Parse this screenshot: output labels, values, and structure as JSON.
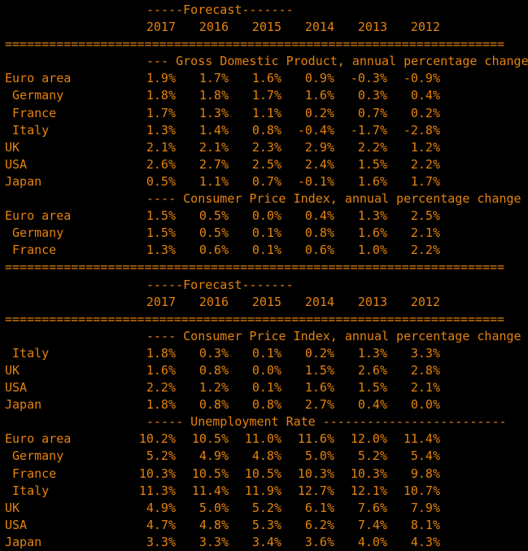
{
  "terminal": {
    "background_color": "#000000",
    "text_color": "#e5820e",
    "forecast_header": "-----Forecast-------",
    "years": [
      "2017",
      "2016",
      "2015",
      "2014",
      "2013",
      "2012"
    ],
    "separator": "===================================================================="
  },
  "blocks": [
    {
      "sections": [
        {
          "title": "--- Gross Domestic Product, annual percentage change",
          "rows": [
            {
              "label": "Euro area",
              "values": [
                "1.9%",
                "1.7%",
                "1.6%",
                "0.9%",
                "-0.3%",
                "-0.9%"
              ]
            },
            {
              "label": " Germany",
              "values": [
                "1.8%",
                "1.8%",
                "1.7%",
                "1.6%",
                "0.3%",
                "0.4%"
              ]
            },
            {
              "label": " France",
              "values": [
                "1.7%",
                "1.3%",
                "1.1%",
                "0.2%",
                "0.7%",
                "0.2%"
              ]
            },
            {
              "label": " Italy",
              "values": [
                "1.3%",
                "1.4%",
                "0.8%",
                "-0.4%",
                "-1.7%",
                "-2.8%"
              ]
            },
            {
              "label": "UK",
              "values": [
                "2.1%",
                "2.1%",
                "2.3%",
                "2.9%",
                "2.2%",
                "1.2%"
              ]
            },
            {
              "label": "USA",
              "values": [
                "2.6%",
                "2.7%",
                "2.5%",
                "2.4%",
                "1.5%",
                "2.2%"
              ]
            },
            {
              "label": "Japan",
              "values": [
                "0.5%",
                "1.1%",
                "0.7%",
                "-0.1%",
                "1.6%",
                "1.7%"
              ]
            }
          ]
        },
        {
          "title": "---- Consumer Price Index, annual percentage change",
          "rows": [
            {
              "label": "Euro area",
              "values": [
                "1.5%",
                "0.5%",
                "0.0%",
                "0.4%",
                "1.3%",
                "2.5%"
              ]
            },
            {
              "label": " Germany",
              "values": [
                "1.5%",
                "0.5%",
                "0.1%",
                "0.8%",
                "1.6%",
                "2.1%"
              ]
            },
            {
              "label": " France",
              "values": [
                "1.3%",
                "0.6%",
                "0.1%",
                "0.6%",
                "1.0%",
                "2.2%"
              ]
            }
          ]
        }
      ],
      "trailing_separator": true
    },
    {
      "sections": [
        {
          "title": "---- Consumer Price Index, annual percentage change",
          "rows": [
            {
              "label": " Italy",
              "values": [
                "1.8%",
                "0.3%",
                "0.1%",
                "0.2%",
                "1.3%",
                "3.3%"
              ]
            },
            {
              "label": "UK",
              "values": [
                "1.6%",
                "0.8%",
                "0.0%",
                "1.5%",
                "2.6%",
                "2.8%"
              ]
            },
            {
              "label": "USA",
              "values": [
                "2.2%",
                "1.2%",
                "0.1%",
                "1.6%",
                "1.5%",
                "2.1%"
              ]
            },
            {
              "label": "Japan",
              "values": [
                "1.8%",
                "0.8%",
                "0.8%",
                "2.7%",
                "0.4%",
                "0.0%"
              ]
            }
          ]
        },
        {
          "title": "----- Unemployment Rate -------------------------",
          "rows": [
            {
              "label": "Euro area",
              "values": [
                "10.2%",
                "10.5%",
                "11.0%",
                "11.6%",
                "12.0%",
                "11.4%"
              ]
            },
            {
              "label": " Germany",
              "values": [
                "5.2%",
                "4.9%",
                "4.8%",
                "5.0%",
                "5.2%",
                "5.4%"
              ]
            },
            {
              "label": " France",
              "values": [
                "10.3%",
                "10.5%",
                "10.5%",
                "10.3%",
                "10.3%",
                "9.8%"
              ]
            },
            {
              "label": " Italy",
              "values": [
                "11.3%",
                "11.4%",
                "11.9%",
                "12.7%",
                "12.1%",
                "10.7%"
              ]
            },
            {
              "label": "UK",
              "values": [
                "4.9%",
                "5.0%",
                "5.2%",
                "6.1%",
                "7.6%",
                "7.9%"
              ]
            },
            {
              "label": "USA",
              "values": [
                "4.7%",
                "4.8%",
                "5.3%",
                "6.2%",
                "7.4%",
                "8.1%"
              ]
            },
            {
              "label": "Japan",
              "values": [
                "3.3%",
                "3.3%",
                "3.4%",
                "3.6%",
                "4.0%",
                "4.3%"
              ]
            }
          ]
        }
      ],
      "trailing_separator": false
    }
  ]
}
